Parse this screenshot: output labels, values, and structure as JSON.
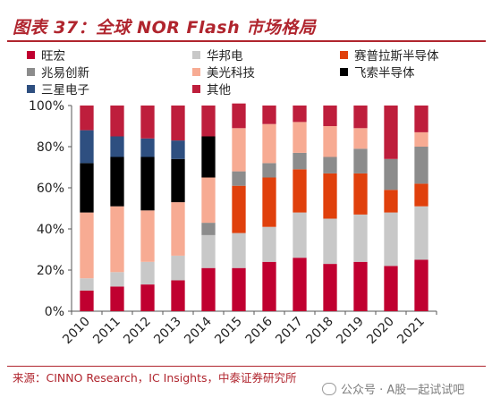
{
  "header": {
    "title": "图表 37：全球 NOR Flash 市场格局"
  },
  "footer": {
    "source": "来源：CINNO Research，IC Insights，中泰证券研究所",
    "watermark": "公众号 · A股一起试试吧"
  },
  "colors": {
    "旺宏": "#c00030",
    "华邦电": "#c8c8c8",
    "赛普拉斯半导体": "#e0400c",
    "兆易创新": "#8c8c8c",
    "美光科技": "#f7ab93",
    "飞索半导体": "#000000",
    "三星电子": "#2e4f80",
    "其他": "#be1e3c"
  },
  "chart_data": {
    "type": "bar",
    "stacked": true,
    "categories": [
      "2010",
      "2011",
      "2012",
      "2013",
      "2014",
      "2015",
      "2016",
      "2017",
      "2018",
      "2019",
      "2020",
      "2021"
    ],
    "ylim": [
      0,
      100
    ],
    "ytick_labels": [
      "0%",
      "20%",
      "40%",
      "60%",
      "80%",
      "100%"
    ],
    "legend_position": "top",
    "legend": [
      "旺宏",
      "华邦电",
      "赛普拉斯半导体",
      "兆易创新",
      "美光科技",
      "飞索半导体",
      "三星电子",
      "其他"
    ],
    "series": [
      {
        "name": "旺宏",
        "values": [
          10,
          12,
          13,
          15,
          21,
          21,
          24,
          26,
          23,
          24,
          22,
          25
        ]
      },
      {
        "name": "华邦电",
        "values": [
          6,
          7,
          11,
          12,
          16,
          17,
          17,
          22,
          22,
          23,
          26,
          26
        ]
      },
      {
        "name": "赛普拉斯半导体",
        "values": [
          0,
          0,
          0,
          0,
          0,
          23,
          24,
          21,
          22,
          20,
          11,
          11
        ]
      },
      {
        "name": "兆易创新",
        "values": [
          0,
          0,
          0,
          0,
          6,
          7,
          7,
          8,
          8,
          12,
          15,
          18
        ]
      },
      {
        "name": "美光科技",
        "values": [
          32,
          32,
          25,
          26,
          22,
          21,
          19,
          15,
          15,
          10,
          0,
          7
        ]
      },
      {
        "name": "飞索半导体",
        "values": [
          24,
          24,
          26,
          21,
          20,
          0,
          0,
          0,
          0,
          0,
          0,
          0
        ]
      },
      {
        "name": "三星电子",
        "values": [
          16,
          10,
          9,
          9,
          0,
          0,
          0,
          0,
          0,
          0,
          0,
          0
        ]
      },
      {
        "name": "其他",
        "values": [
          12,
          15,
          16,
          17,
          15,
          12,
          9,
          8,
          10,
          11,
          26,
          13
        ]
      }
    ]
  }
}
